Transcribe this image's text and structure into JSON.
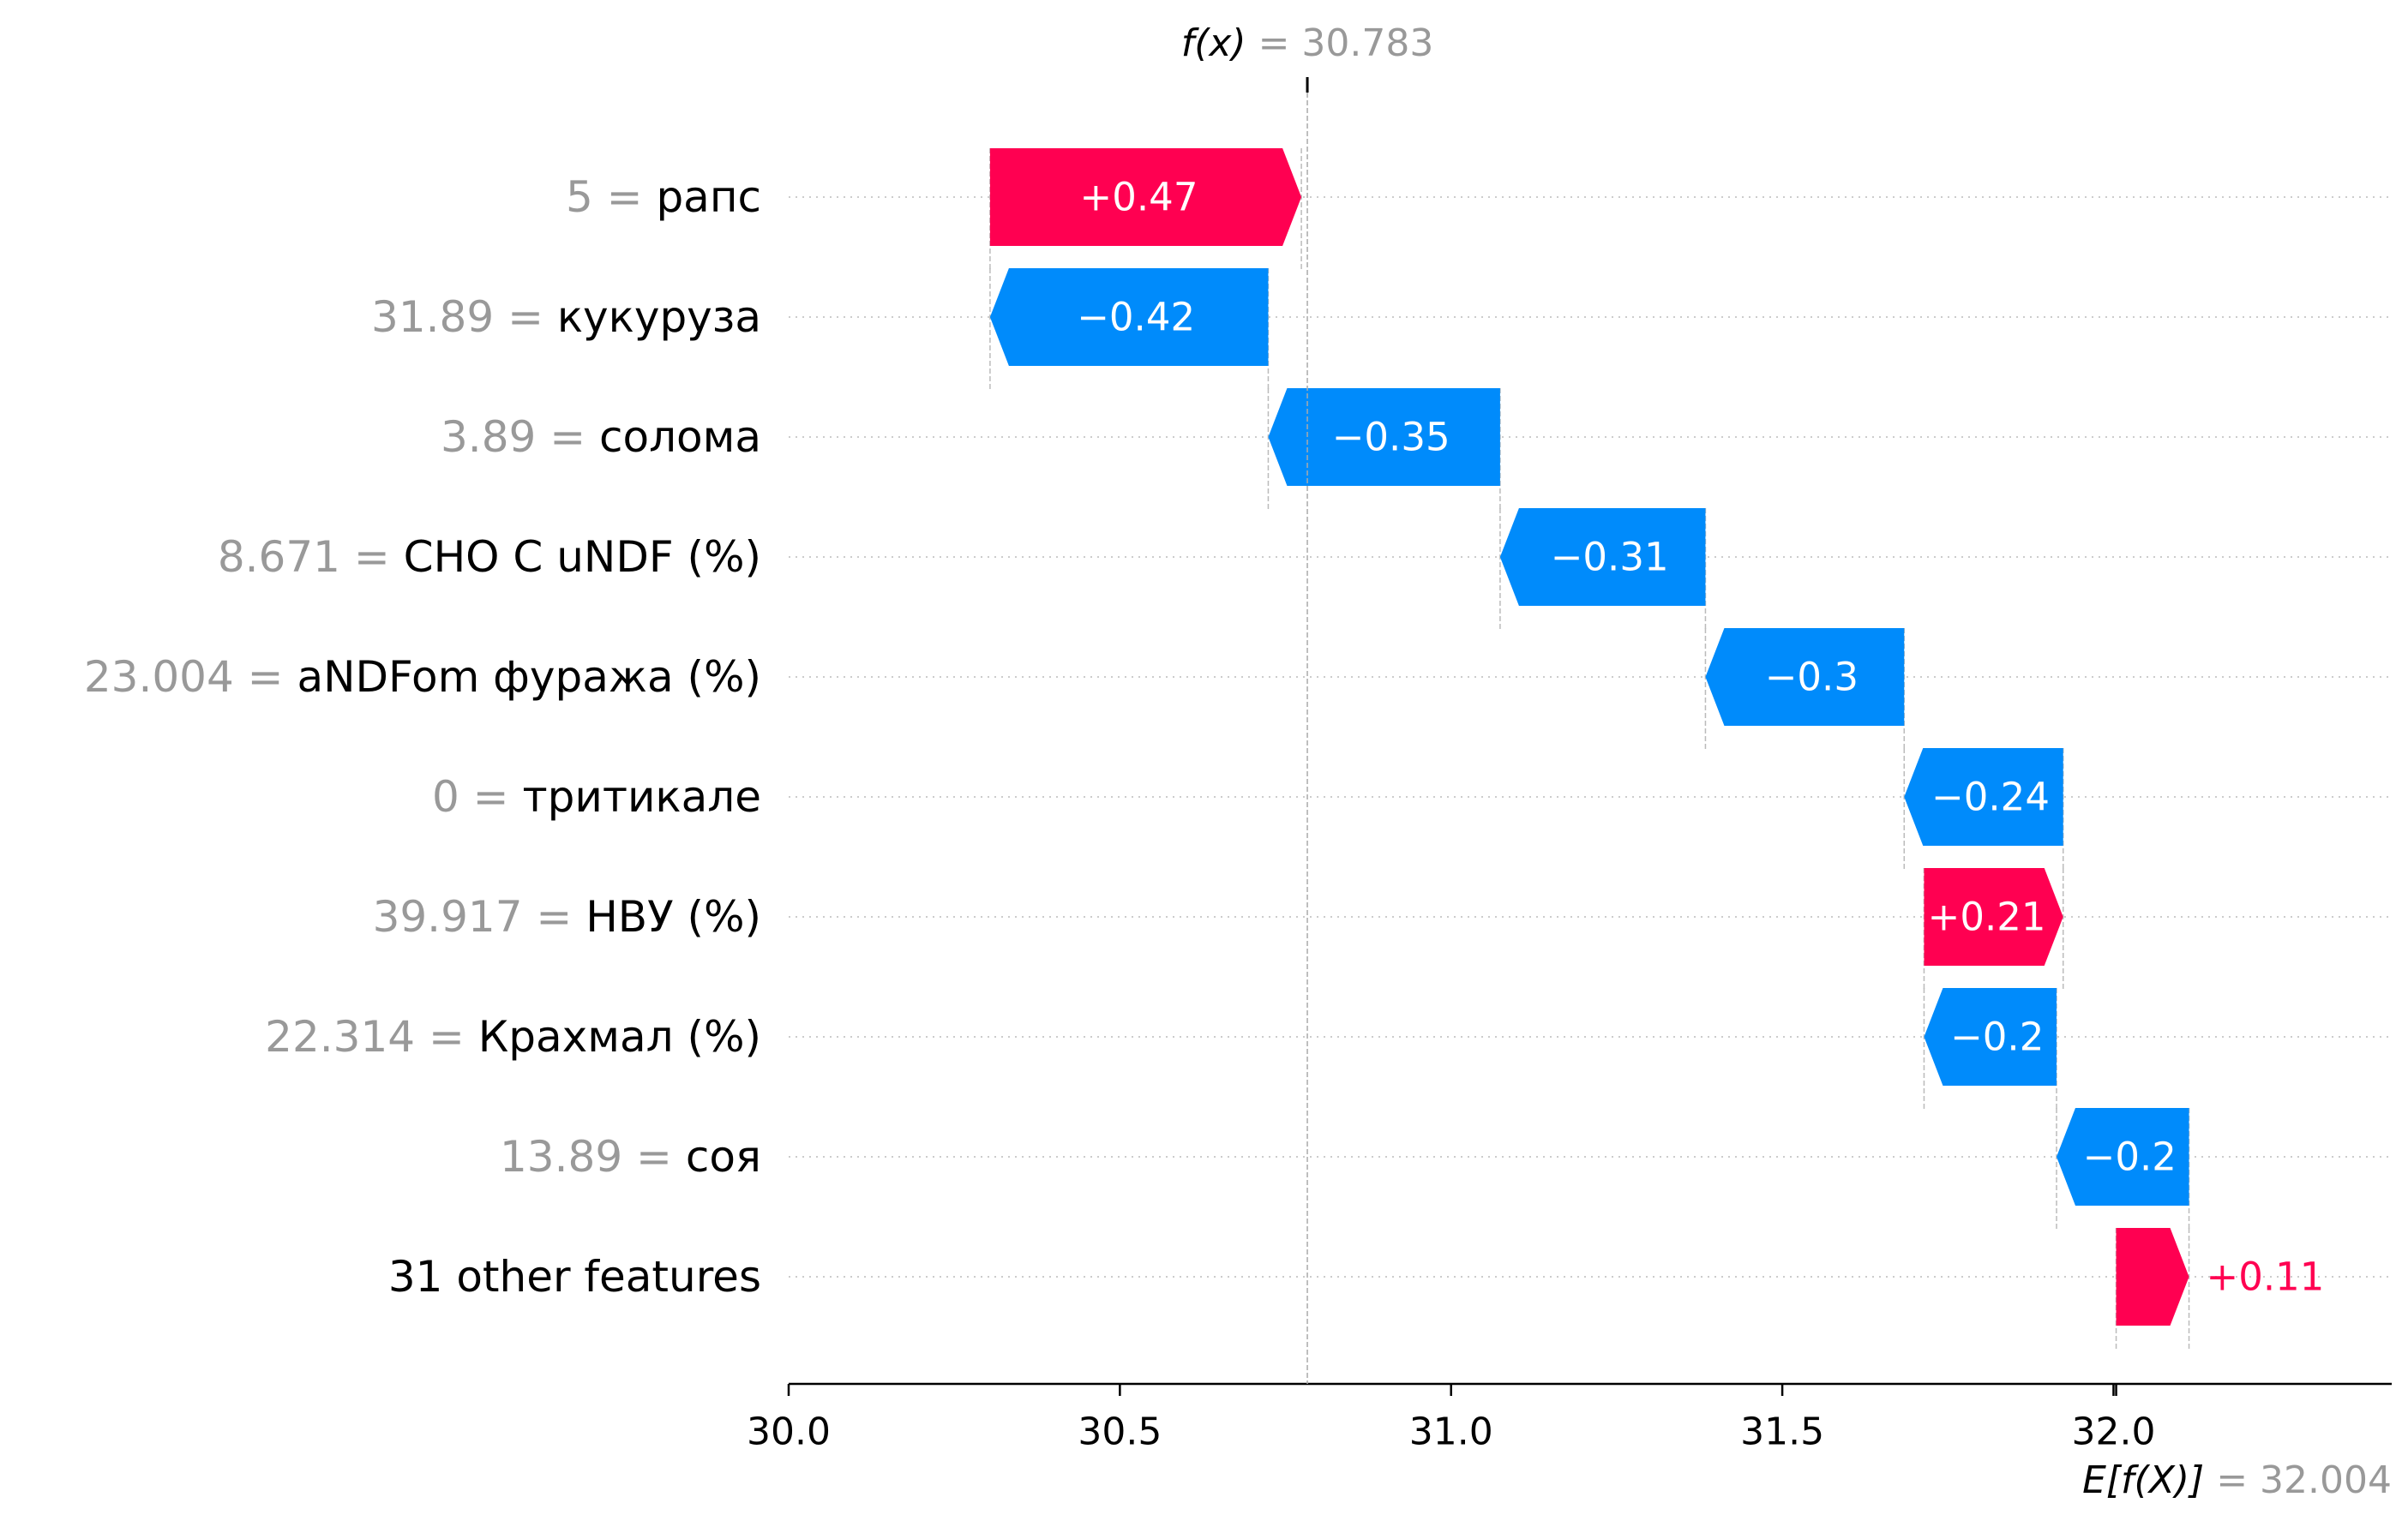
{
  "chart_data": {
    "type": "waterfall",
    "base_value_label": "E[f(X)]",
    "base_value_text": " = 32.004",
    "base_value": 32.004,
    "output_value_label": "f(x)",
    "output_value_text": " = 30.783",
    "output_value": 30.783,
    "xlim": [
      30.0,
      32.42
    ],
    "xticks": [
      30.0,
      30.5,
      31.0,
      31.5,
      32.0
    ],
    "xtick_labels": [
      "30.0",
      "30.5",
      "31.0",
      "31.5",
      "32.0"
    ],
    "grid": "horizontal dotted per row",
    "features": [
      {
        "value": "5",
        "name": "рапс",
        "contribution": 0.47,
        "label": "+0.47"
      },
      {
        "value": "31.89",
        "name": "кукуруза",
        "contribution": -0.42,
        "label": "−0.42"
      },
      {
        "value": "3.89",
        "name": "солома",
        "contribution": -0.35,
        "label": "−0.35"
      },
      {
        "value": "8.671",
        "name": "CHO C uNDF (%)",
        "contribution": -0.31,
        "label": "−0.31"
      },
      {
        "value": "23.004",
        "name": "aNDFom фуража (%)",
        "contribution": -0.3,
        "label": "−0.3"
      },
      {
        "value": "0",
        "name": "тритикале",
        "contribution": -0.24,
        "label": "−0.24"
      },
      {
        "value": "39.917",
        "name": "НВУ (%)",
        "contribution": 0.21,
        "label": "+0.21"
      },
      {
        "value": "22.314",
        "name": "Крахмал (%)",
        "contribution": -0.2,
        "label": "−0.2"
      },
      {
        "value": "13.89",
        "name": "соя",
        "contribution": -0.2,
        "label": "−0.2"
      },
      {
        "value": "",
        "name": "31 other features",
        "contribution": 0.11,
        "label": "+0.11"
      }
    ],
    "colors": {
      "positive": "#ff0051",
      "negative": "#008bfb",
      "muted": "#999999",
      "axis": "#000000"
    }
  }
}
